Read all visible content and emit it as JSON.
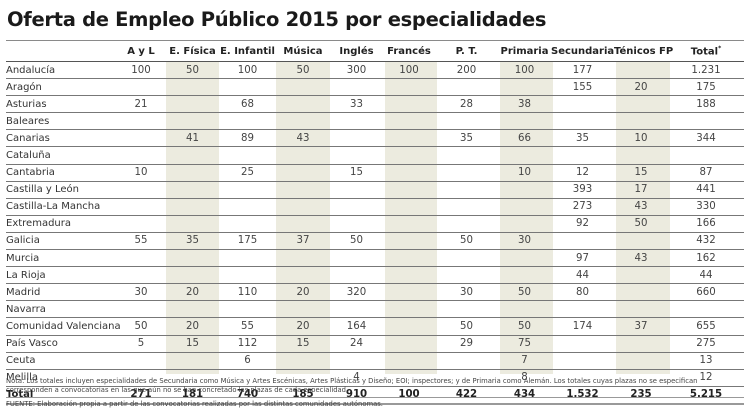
{
  "title": "Oferta de Empleo Público 2015 por especialidades",
  "colors": {
    "shaded_column": "#ecebdf",
    "rule": "#777777"
  },
  "table": {
    "columns": [
      "",
      "A y L",
      "E. Física",
      "E. Infantil",
      "Música",
      "Inglés",
      "Francés",
      "P. T.",
      "Primaria",
      "Secundaria",
      "Ténicos FP",
      "Total"
    ],
    "total_marker": "*",
    "shaded_columns": [
      "E. Física",
      "Música",
      "Francés",
      "Primaria",
      "Ténicos FP"
    ],
    "rows": [
      [
        "Andalucía",
        "100",
        "50",
        "100",
        "50",
        "300",
        "100",
        "200",
        "100",
        "177",
        "",
        "1.231"
      ],
      [
        "Aragón",
        "",
        "",
        "",
        "",
        "",
        "",
        "",
        "",
        "155",
        "20",
        "175"
      ],
      [
        "Asturias",
        "21",
        "",
        "68",
        "",
        "33",
        "",
        "28",
        "38",
        "",
        "",
        "188"
      ],
      [
        "Baleares",
        "",
        "",
        "",
        "",
        "",
        "",
        "",
        "",
        "",
        "",
        ""
      ],
      [
        "Canarias",
        "",
        "41",
        "89",
        "43",
        "",
        "",
        "35",
        "66",
        "35",
        "10",
        "344"
      ],
      [
        "Cataluña",
        "",
        "",
        "",
        "",
        "",
        "",
        "",
        "",
        "",
        "",
        ""
      ],
      [
        "Cantabria",
        "10",
        "",
        "25",
        "",
        "15",
        "",
        "",
        "10",
        "12",
        "15",
        "87"
      ],
      [
        "Castilla y León",
        "",
        "",
        "",
        "",
        "",
        "",
        "",
        "",
        "393",
        "17",
        "441"
      ],
      [
        "Castilla-La Mancha",
        "",
        "",
        "",
        "",
        "",
        "",
        "",
        "",
        "273",
        "43",
        "330"
      ],
      [
        "Extremadura",
        "",
        "",
        "",
        "",
        "",
        "",
        "",
        "",
        "92",
        "50",
        "166"
      ],
      [
        "Galicia",
        "55",
        "35",
        "175",
        "37",
        "50",
        "",
        "50",
        "30",
        "",
        "",
        "432"
      ],
      [
        "Murcia",
        "",
        "",
        "",
        "",
        "",
        "",
        "",
        "",
        "97",
        "43",
        "162"
      ],
      [
        "La Rioja",
        "",
        "",
        "",
        "",
        "",
        "",
        "",
        "",
        "44",
        "",
        "44"
      ],
      [
        "Madrid",
        "30",
        "20",
        "110",
        "20",
        "320",
        "",
        "30",
        "50",
        "80",
        "",
        "660"
      ],
      [
        "Navarra",
        "",
        "",
        "",
        "",
        "",
        "",
        "",
        "",
        "",
        "",
        ""
      ],
      [
        "Comunidad Valenciana",
        "50",
        "20",
        "55",
        "20",
        "164",
        "",
        "50",
        "50",
        "174",
        "37",
        "655"
      ],
      [
        "País Vasco",
        "5",
        "15",
        "112",
        "15",
        "24",
        "",
        "29",
        "75",
        "",
        "",
        "275"
      ],
      [
        "Ceuta",
        "",
        "",
        "6",
        "",
        "",
        "",
        "",
        "7",
        "",
        "",
        "13"
      ],
      [
        "Melilla",
        "",
        "",
        "",
        "",
        "4",
        "",
        "",
        "8",
        "",
        "",
        "12"
      ]
    ],
    "total_row": [
      "Total",
      "271",
      "181",
      "740",
      "185",
      "910",
      "100",
      "422",
      "434",
      "1.532",
      "235",
      "5.215"
    ]
  },
  "note": "Nota: Los totales incluyen especialidades de Secundaria como Música y Artes Escénicas, Artes Plásticas y Diseño; EOI; inspectores; y de Primaria como Alemán. Los totales cuyas plazas no se especifican corresponden a convocatorias en las que aún no se han concretado las plazas de cada especialidad.",
  "source": "FUENTE: Elaboración propia a partir de las convocatorias realizadas por las distintas comunidades autónomas."
}
